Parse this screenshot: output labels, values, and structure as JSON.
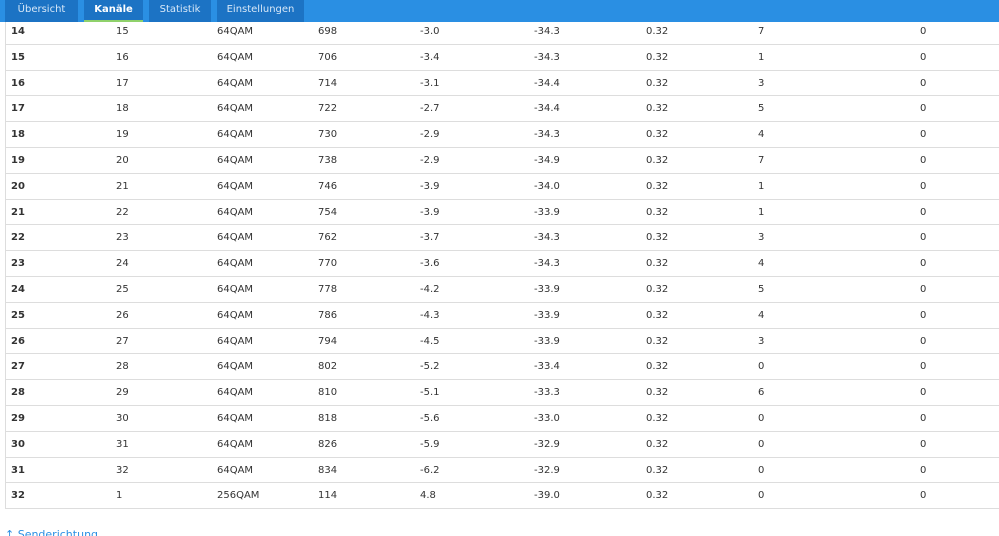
{
  "tabs": [
    "Übersicht",
    "Kanäle",
    "Statistik",
    "Einstellungen"
  ],
  "active_tab": 1,
  "table": {
    "rows": [
      [
        "14",
        "15",
        "64QAM",
        "698",
        "-3.0",
        "-34.3",
        "0.32",
        "7",
        "0"
      ],
      [
        "15",
        "16",
        "64QAM",
        "706",
        "-3.4",
        "-34.3",
        "0.32",
        "1",
        "0"
      ],
      [
        "16",
        "17",
        "64QAM",
        "714",
        "-3.1",
        "-34.4",
        "0.32",
        "3",
        "0"
      ],
      [
        "17",
        "18",
        "64QAM",
        "722",
        "-2.7",
        "-34.4",
        "0.32",
        "5",
        "0"
      ],
      [
        "18",
        "19",
        "64QAM",
        "730",
        "-2.9",
        "-34.3",
        "0.32",
        "4",
        "0"
      ],
      [
        "19",
        "20",
        "64QAM",
        "738",
        "-2.9",
        "-34.9",
        "0.32",
        "7",
        "0"
      ],
      [
        "20",
        "21",
        "64QAM",
        "746",
        "-3.9",
        "-34.0",
        "0.32",
        "1",
        "0"
      ],
      [
        "21",
        "22",
        "64QAM",
        "754",
        "-3.9",
        "-33.9",
        "0.32",
        "1",
        "0"
      ],
      [
        "22",
        "23",
        "64QAM",
        "762",
        "-3.7",
        "-34.3",
        "0.32",
        "3",
        "0"
      ],
      [
        "23",
        "24",
        "64QAM",
        "770",
        "-3.6",
        "-34.3",
        "0.32",
        "4",
        "0"
      ],
      [
        "24",
        "25",
        "64QAM",
        "778",
        "-4.2",
        "-33.9",
        "0.32",
        "5",
        "0"
      ],
      [
        "25",
        "26",
        "64QAM",
        "786",
        "-4.3",
        "-33.9",
        "0.32",
        "4",
        "0"
      ],
      [
        "26",
        "27",
        "64QAM",
        "794",
        "-4.5",
        "-33.9",
        "0.32",
        "3",
        "0"
      ],
      [
        "27",
        "28",
        "64QAM",
        "802",
        "-5.2",
        "-33.4",
        "0.32",
        "0",
        "0"
      ],
      [
        "28",
        "29",
        "64QAM",
        "810",
        "-5.1",
        "-33.3",
        "0.32",
        "6",
        "0"
      ],
      [
        "29",
        "30",
        "64QAM",
        "818",
        "-5.6",
        "-33.0",
        "0.32",
        "0",
        "0"
      ],
      [
        "30",
        "31",
        "64QAM",
        "826",
        "-5.9",
        "-32.9",
        "0.32",
        "0",
        "0"
      ],
      [
        "31",
        "32",
        "64QAM",
        "834",
        "-6.2",
        "-32.9",
        "0.32",
        "0",
        "0"
      ],
      [
        "32",
        "1",
        "256QAM",
        "114",
        "4.8",
        "-39.0",
        "0.32",
        "0",
        "0"
      ]
    ]
  },
  "footer_link": "↑ Senderichtung"
}
